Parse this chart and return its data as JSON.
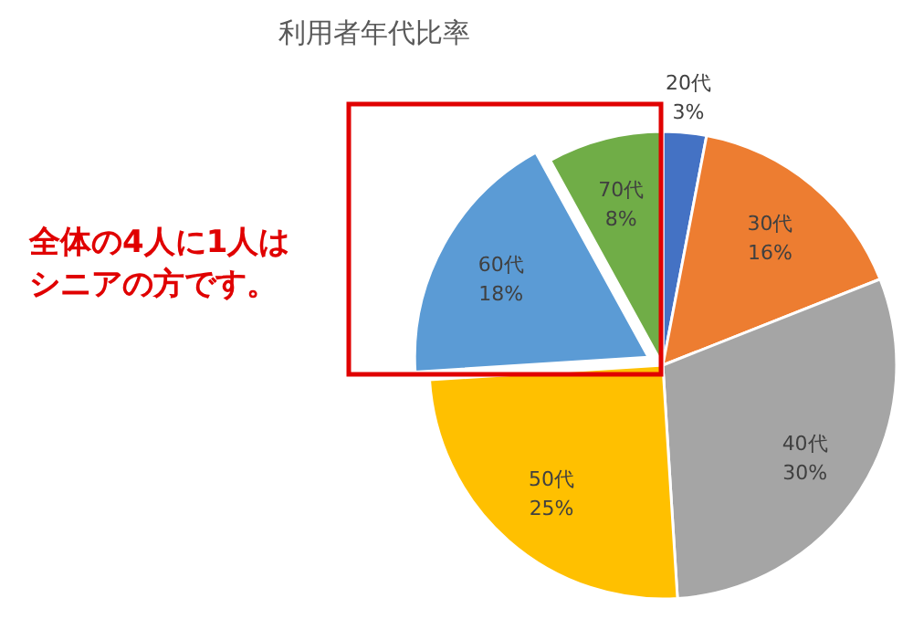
{
  "chart_data": {
    "type": "pie",
    "title": "利用者年代比率",
    "categories": [
      "20代",
      "30代",
      "40代",
      "50代",
      "60代",
      "70代"
    ],
    "values": [
      3,
      16,
      30,
      25,
      18,
      8
    ],
    "colors": [
      "#4472c4",
      "#ed7d31",
      "#a5a5a5",
      "#ffc000",
      "#5b9bd5",
      "#70ad47"
    ],
    "value_labels": [
      "3%",
      "16%",
      "30%",
      "25%",
      "18%",
      "8%"
    ],
    "annotations": [
      "全体の4人に1人はシニアの方です。"
    ]
  }
}
